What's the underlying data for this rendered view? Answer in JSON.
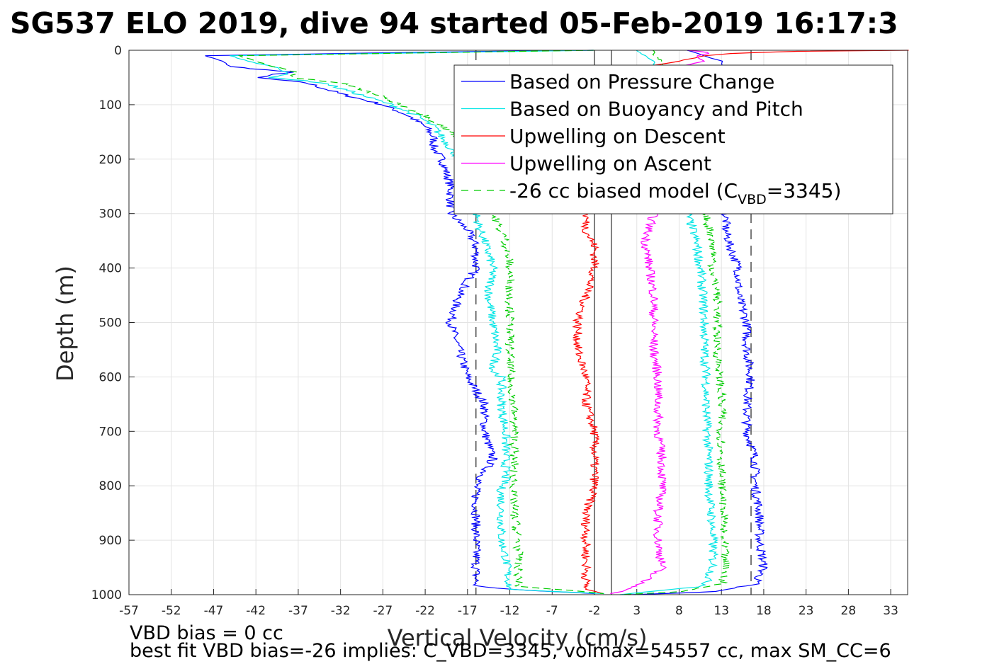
{
  "chart_data": {
    "type": "line",
    "title": "SG537 ELO 2019, dive 94 started 05-Feb-2019 16:17:3",
    "xlabel": "Vertical Velocity (cm/s)",
    "ylabel": "Depth (m)",
    "xlim": [
      -57,
      35
    ],
    "ylim": [
      0,
      1000
    ],
    "y_reversed": true,
    "grid": true,
    "xticks": [
      -57,
      -52,
      -47,
      -42,
      -37,
      -32,
      -27,
      -22,
      -17,
      -12,
      -7,
      -2,
      3,
      8,
      13,
      18,
      23,
      28,
      33
    ],
    "yticks": [
      0,
      100,
      200,
      300,
      400,
      500,
      600,
      700,
      800,
      900,
      1000
    ],
    "legend_position": "top-right",
    "reference_lines": {
      "solid_x": [
        -2,
        0
      ],
      "dashed_x": [
        -16,
        16.5
      ]
    },
    "series": [
      {
        "name": "Based on Pressure Change",
        "color": "#0000ff",
        "style": "solid",
        "segments": [
          {
            "depth": [
              0,
              3,
              10,
              20,
              30,
              40,
              50,
              60,
              80,
              100,
              120,
              140,
              160,
              180,
              200,
              250,
              300,
              330,
              360,
              400,
              450,
              500,
              550,
              600,
              650,
              700,
              750,
              800,
              850,
              900,
              950,
              985,
              992,
              998
            ],
            "velocity": [
              -2,
              -20,
              -48,
              -46,
              -45,
              -38,
              -42,
              -36,
              -32,
              -27,
              -24,
              -22,
              -21,
              -21,
              -20,
              -19,
              -19,
              -17,
              -16,
              -16,
              -18,
              -19,
              -18,
              -17,
              -15,
              -15,
              -14,
              -16,
              -16,
              -16,
              -16,
              -16,
              -10,
              -2
            ]
          },
          {
            "depth": [
              0,
              10,
              20,
              80,
              150,
              300,
              330,
              360,
              400,
              450,
              500,
              550,
              600,
              650,
              700,
              750,
              800,
              850,
              900,
              950,
              980,
              995,
              1000
            ],
            "velocity": [
              9,
              11,
              13,
              14,
              14,
              13.5,
              13.5,
              14,
              15,
              15,
              16,
              16,
              16.5,
              16,
              16,
              17,
              17,
              17.5,
              17.5,
              18,
              17,
              12,
              2
            ]
          }
        ]
      },
      {
        "name": "Based on Buoyancy and Pitch",
        "color": "#00e5e5",
        "style": "solid",
        "segments": [
          {
            "depth": [
              0,
              3,
              10,
              20,
              30,
              40,
              50,
              60,
              80,
              100,
              120,
              140,
              160,
              180,
              200,
              250,
              300,
              330,
              350,
              400,
              450,
              500,
              550,
              590,
              600,
              650,
              700,
              750,
              790,
              800,
              850,
              900,
              930,
              990,
              995,
              998
            ],
            "velocity": [
              -2,
              -15,
              -45,
              -43,
              -40,
              -38,
              -40,
              -34,
              -30,
              -26,
              -23,
              -21,
              -20,
              -19,
              -18,
              -17,
              -16,
              -15.5,
              -15,
              -14,
              -14.5,
              -14,
              -13.5,
              -14,
              -13,
              -13,
              -12.5,
              -12.5,
              -12.5,
              -13,
              -13,
              -13,
              -12.5,
              -12,
              -6,
              -1
            ]
          },
          {
            "depth": [
              0,
              10,
              20,
              80,
              150,
              300,
              350,
              400,
              450,
              500,
              550,
              600,
              650,
              700,
              750,
              800,
              850,
              900,
              950,
              985,
              992,
              1000
            ],
            "velocity": [
              3,
              4,
              5,
              6,
              7,
              9,
              10,
              10.5,
              10.8,
              11,
              11,
              11.2,
              11.2,
              11.3,
              11.5,
              11.5,
              11.8,
              12,
              12,
              11,
              6,
              1
            ]
          }
        ]
      },
      {
        "name": "Upwelling on Descent",
        "color": "#ff0000",
        "style": "solid",
        "segments": [
          {
            "depth": [
              0,
              2,
              5,
              10,
              20,
              30,
              300,
              330,
              360,
              400,
              450,
              500,
              550,
              600,
              650,
              700,
              750,
              800,
              850,
              900,
              950,
              990,
              998
            ],
            "velocity": [
              35,
              22,
              15,
              11,
              8,
              4,
              -3,
              -3,
              -2,
              -2,
              -3,
              -4,
              -4,
              -3,
              -3,
              -2,
              -2,
              -2,
              -3,
              -3,
              -3,
              -3,
              -1
            ]
          }
        ]
      },
      {
        "name": "Upwelling on Ascent",
        "color": "#ff00ff",
        "style": "solid",
        "segments": [
          {
            "depth": [
              0,
              5,
              10,
              20,
              30,
              300,
              350,
              400,
              450,
              500,
              550,
              600,
              650,
              700,
              750,
              800,
              850,
              900,
              950,
              985,
              995,
              998
            ],
            "velocity": [
              9,
              12,
              10,
              11,
              8,
              5,
              4,
              4.5,
              5,
              5,
              5,
              5.5,
              5.5,
              5.5,
              6,
              6,
              5.5,
              5.5,
              6,
              3,
              1,
              0
            ]
          }
        ]
      },
      {
        "name": "-26 cc biased model (C",
        "name_subscript": "VBD",
        "name_suffix": "=3345)",
        "color": "#00cc00",
        "style": "dashed",
        "segments": [
          {
            "depth": [
              0,
              3,
              10,
              20,
              30,
              40,
              50,
              60,
              80,
              100,
              120,
              140,
              160,
              180,
              200,
              250,
              300,
              350,
              400,
              450,
              500,
              550,
              600,
              650,
              700,
              750,
              800,
              850,
              900,
              950,
              985,
              992,
              998
            ],
            "velocity": [
              -2,
              -15,
              -44,
              -42,
              -40,
              -37,
              -38,
              -32,
              -28,
              -25,
              -22,
              -20,
              -18,
              -17,
              -16,
              -15.5,
              -14,
              -12.5,
              -12,
              -12,
              -12,
              -12,
              -12,
              -11.5,
              -11.5,
              -11.5,
              -11.5,
              -11.5,
              -11,
              -11,
              -11,
              -5,
              -1
            ]
          },
          {
            "depth": [
              0,
              10,
              20,
              80,
              150,
              300,
              350,
              400,
              450,
              500,
              550,
              600,
              650,
              700,
              750,
              800,
              850,
              900,
              950,
              980,
              995,
              1000
            ],
            "velocity": [
              5,
              5,
              6,
              7,
              9,
              11,
              12,
              12,
              12.5,
              12.5,
              12.5,
              12.8,
              13,
              13,
              13,
              13,
              13.2,
              13.2,
              13.5,
              13,
              8,
              1
            ]
          }
        ]
      }
    ]
  },
  "annotations": {
    "line1": "VBD bias = 0 cc",
    "line2": "best fit VBD bias=-26 implies: C_VBD=3345, volmax=54557 cc, max SM_CC=6"
  }
}
